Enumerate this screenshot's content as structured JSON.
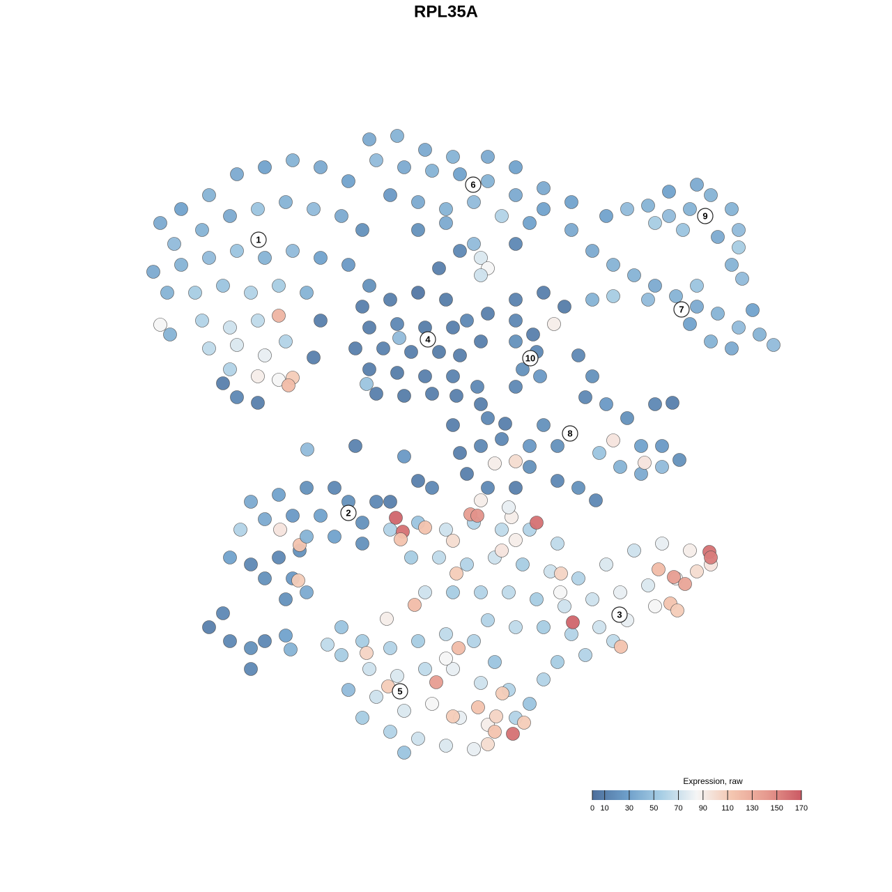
{
  "chart_data": {
    "type": "scatter",
    "title": "RPL35A",
    "xlim": [
      0,
      1280
    ],
    "ylim": [
      1280,
      0
    ],
    "x": [
      230,
      260,
      300,
      340,
      380,
      420,
      460,
      500,
      250,
      290,
      330,
      370,
      410,
      450,
      490,
      520,
      220,
      260,
      300,
      340,
      380,
      420,
      460,
      500,
      240,
      280,
      320,
      360,
      400,
      440,
      290,
      330,
      370,
      400,
      300,
      340,
      380,
      410,
      330,
      370,
      400,
      420,
      414,
      320,
      340,
      370,
      230,
      244,
      460,
      450,
      530,
      570,
      610,
      650,
      700,
      740,
      780,
      820,
      540,
      580,
      620,
      660,
      700,
      740,
      780,
      820,
      560,
      600,
      640,
      680,
      720,
      760,
      600,
      640,
      690,
      700,
      690,
      680,
      660,
      630,
      740,
      870,
      900,
      930,
      960,
      990,
      1020,
      1050,
      1060,
      940,
      980,
      1030,
      1060,
      1050,
      1065,
      960,
      1000,
      850,
      880,
      910,
      940,
      970,
      1000,
      1030,
      1060,
      1090,
      1110,
      1020,
      990,
      850,
      880,
      1050,
      1080,
      1000,
      930,
      520,
      560,
      600,
      640,
      530,
      570,
      610,
      650,
      510,
      550,
      590,
      630,
      660,
      530,
      570,
      610,
      650,
      540,
      580,
      620,
      573,
      526,
      670,
      700,
      740,
      780,
      810,
      690,
      740,
      530,
      740,
      770,
      750,
      775,
      740,
      765,
      795,
      830,
      850,
      840,
      870,
      900,
      940,
      965,
      920,
      950,
      975,
      890,
      920,
      950,
      860,
      880,
      925,
      780,
      800,
      760,
      720,
      690,
      670,
      710,
      740,
      760,
      800,
      830,
      855,
      740,
      700,
      660,
      600,
      620,
      580,
      700,
      650,
      510,
      441,
      690,
      685,
      655,
      725,
      360,
      400,
      440,
      480,
      500,
      460,
      420,
      380,
      345,
      402,
      430,
      400,
      360,
      330,
      380,
      420,
      428,
      430,
      440,
      480,
      520,
      520,
      540,
      560,
      410,
      440,
      300,
      330,
      360,
      380,
      360,
      410,
      417,
      320,
      560,
      600,
      640,
      680,
      720,
      760,
      800,
      590,
      630,
      670,
      710,
      750,
      790,
      830,
      870,
      910,
      950,
      990,
      1020,
      610,
      650,
      690,
      730,
      770,
      810,
      850,
      890,
      930,
      970,
      1000,
      780,
      820,
      860,
      900,
      940,
      700,
      740,
      800,
      840,
      880,
      780,
      568,
      578,
      610,
      675,
      685,
      770,
      822,
      1018,
      1020,
      967,
      983,
      945,
      962,
      972,
      891,
      805,
      655,
      595,
      575,
      650,
      720,
      740,
      734,
      804,
      690,
      730,
      490,
      520,
      560,
      600,
      640,
      680,
      710,
      490,
      530,
      570,
      610,
      650,
      690,
      730,
      500,
      540,
      580,
      620,
      660,
      700,
      740,
      760,
      520,
      560,
      600,
      640,
      680,
      580,
      526,
      557,
      658,
      626,
      710,
      736,
      721,
      686,
      650,
      712,
      752,
      700,
      555,
      470,
      640
    ],
    "y": [
      320,
      300,
      280,
      250,
      240,
      230,
      240,
      260,
      350,
      330,
      310,
      300,
      290,
      300,
      310,
      330,
      390,
      380,
      370,
      360,
      370,
      360,
      370,
      380,
      420,
      420,
      410,
      420,
      410,
      420,
      460,
      470,
      460,
      453,
      500,
      495,
      510,
      490,
      530,
      540,
      545,
      542,
      553,
      550,
      570,
      578,
      466,
      480,
      460,
      513,
      200,
      195,
      215,
      225,
      225,
      240,
      270,
      290,
      230,
      240,
      245,
      250,
      260,
      280,
      300,
      330,
      280,
      290,
      300,
      290,
      310,
      320,
      330,
      320,
      370,
      385,
      395,
      350,
      360,
      385,
      350,
      310,
      300,
      295,
      310,
      300,
      280,
      300,
      330,
      320,
      330,
      340,
      355,
      380,
      400,
      275,
      265,
      360,
      380,
      395,
      410,
      425,
      440,
      450,
      470,
      480,
      495,
      490,
      465,
      430,
      425,
      500,
      445,
      410,
      430,
      440,
      430,
      420,
      430,
      470,
      465,
      470,
      470,
      500,
      500,
      505,
      505,
      510,
      530,
      535,
      540,
      540,
      565,
      568,
      565,
      485,
      551,
      460,
      450,
      430,
      420,
      440,
      490,
      460,
      410,
      490,
      505,
      530,
      540,
      555,
      480,
      465,
      510,
      540,
      570,
      580,
      600,
      580,
      578,
      640,
      640,
      660,
      670,
      680,
      670,
      650,
      632,
      664,
      610,
      640,
      640,
      630,
      640,
      680,
      665,
      662,
      670,
      690,
      700,
      718,
      700,
      700,
      650,
      690,
      700,
      655,
      600,
      610,
      640,
      645,
      580,
      555,
      568,
      608,
      720,
      710,
      700,
      700,
      720,
      740,
      740,
      745,
      760,
      760,
      790,
      800,
      810,
      800,
      830,
      830,
      833,
      782,
      770,
      770,
      780,
      750,
      720,
      720,
      860,
      850,
      900,
      920,
      930,
      920,
      960,
      912,
      932,
      880,
      760,
      750,
      760,
      750,
      760,
      760,
      780,
      800,
      800,
      810,
      800,
      810,
      820,
      830,
      810,
      790,
      780,
      790,
      810,
      850,
      850,
      850,
      850,
      860,
      870,
      860,
      850,
      840,
      830,
      820,
      900,
      910,
      900,
      890,
      870,
      890,
      900,
      950,
      940,
      920,
      975,
      743,
      763,
      757,
      738,
      740,
      750,
      893,
      792,
      800,
      828,
      838,
      817,
      866,
      876,
      928,
      823,
      823,
      868,
      774,
      776,
      790,
      775,
      742,
      850,
      718,
      728,
      900,
      920,
      930,
      920,
      910,
      920,
      950,
      940,
      960,
      970,
      960,
      960,
      980,
      990,
      990,
      1000,
      1020,
      1010,
      1030,
      1040,
      1030,
      1010,
      1030,
      1050,
      1060,
      1070,
      1075,
      1080,
      937,
      985,
      930,
      979,
      1050,
      1053,
      995,
      1015,
      1028,
      1028,
      1037,
      1068,
      888,
      925,
      945
    ],
    "values": [
      35,
      30,
      40,
      35,
      30,
      40,
      35,
      30,
      45,
      40,
      35,
      50,
      40,
      45,
      35,
      20,
      35,
      40,
      45,
      50,
      40,
      45,
      30,
      25,
      40,
      55,
      50,
      60,
      55,
      40,
      60,
      70,
      65,
      125,
      65,
      75,
      80,
      60,
      60,
      90,
      85,
      110,
      120,
      10,
      15,
      10,
      85,
      40,
      10,
      10,
      35,
      40,
      35,
      40,
      35,
      30,
      35,
      30,
      45,
      35,
      40,
      30,
      40,
      35,
      30,
      35,
      25,
      35,
      40,
      45,
      60,
      30,
      20,
      35,
      75,
      85,
      70,
      45,
      15,
      10,
      15,
      30,
      45,
      40,
      45,
      40,
      40,
      40,
      45,
      55,
      50,
      35,
      55,
      40,
      45,
      30,
      35,
      35,
      40,
      40,
      35,
      40,
      35,
      40,
      45,
      40,
      45,
      40,
      30,
      40,
      55,
      35,
      30,
      50,
      45,
      10,
      10,
      5,
      8,
      10,
      15,
      8,
      10,
      10,
      12,
      10,
      8,
      10,
      10,
      8,
      10,
      12,
      10,
      8,
      10,
      45,
      50,
      15,
      10,
      12,
      10,
      8,
      10,
      15,
      20,
      20,
      15,
      20,
      25,
      15,
      10,
      90,
      15,
      20,
      15,
      25,
      20,
      15,
      10,
      30,
      25,
      20,
      40,
      35,
      45,
      50,
      95,
      95,
      20,
      20,
      25,
      15,
      15,
      10,
      90,
      100,
      20,
      15,
      20,
      15,
      10,
      15,
      10,
      10,
      15,
      25,
      15,
      10,
      12,
      45,
      10,
      15,
      10,
      10,
      35,
      30,
      20,
      15,
      20,
      30,
      25,
      35,
      60,
      95,
      20,
      15,
      15,
      30,
      20,
      25,
      110,
      115,
      40,
      30,
      20,
      20,
      15,
      10,
      20,
      35,
      10,
      15,
      20,
      15,
      15,
      30,
      40,
      15,
      60,
      50,
      70,
      60,
      65,
      60,
      65,
      55,
      65,
      60,
      70,
      55,
      70,
      60,
      75,
      70,
      80,
      90,
      95,
      70,
      55,
      60,
      65,
      55,
      70,
      70,
      80,
      75,
      85,
      100,
      55,
      60,
      70,
      80,
      85,
      60,
      65,
      55,
      60,
      65,
      60,
      165,
      160,
      115,
      140,
      145,
      160,
      165,
      160,
      155,
      140,
      135,
      120,
      115,
      110,
      115,
      105,
      110,
      120,
      115,
      100,
      95,
      90,
      90,
      85,
      90,
      80,
      50,
      55,
      60,
      55,
      65,
      60,
      50,
      55,
      70,
      75,
      65,
      80,
      70,
      60,
      45,
      70,
      75,
      85,
      80,
      90,
      60,
      50,
      55,
      60,
      70,
      75,
      80,
      50,
      105,
      110,
      120,
      140,
      115,
      160,
      110,
      115,
      110,
      105,
      110,
      100,
      90,
      65,
      85
    ],
    "annotations": [
      {
        "text": "1",
        "x": 371,
        "y": 344
      },
      {
        "text": "6",
        "x": 679,
        "y": 265
      },
      {
        "text": "9",
        "x": 1012,
        "y": 310
      },
      {
        "text": "7",
        "x": 978,
        "y": 444
      },
      {
        "text": "4",
        "x": 614,
        "y": 487
      },
      {
        "text": "10",
        "x": 761,
        "y": 514
      },
      {
        "text": "8",
        "x": 818,
        "y": 622
      },
      {
        "text": "2",
        "x": 500,
        "y": 736
      },
      {
        "text": "3",
        "x": 889,
        "y": 882
      },
      {
        "text": "5",
        "x": 574,
        "y": 992
      }
    ],
    "colorbar": {
      "title": "Expression, raw",
      "lim": [
        0,
        170
      ],
      "ticks": [
        0,
        10,
        30,
        50,
        70,
        90,
        110,
        130,
        150,
        170
      ],
      "colors": [
        "#4d6f9c",
        "#6e9fca",
        "#a9cfe5",
        "#f5f5f5",
        "#f4c6b0",
        "#e69a8f",
        "#cb5a64"
      ]
    }
  }
}
